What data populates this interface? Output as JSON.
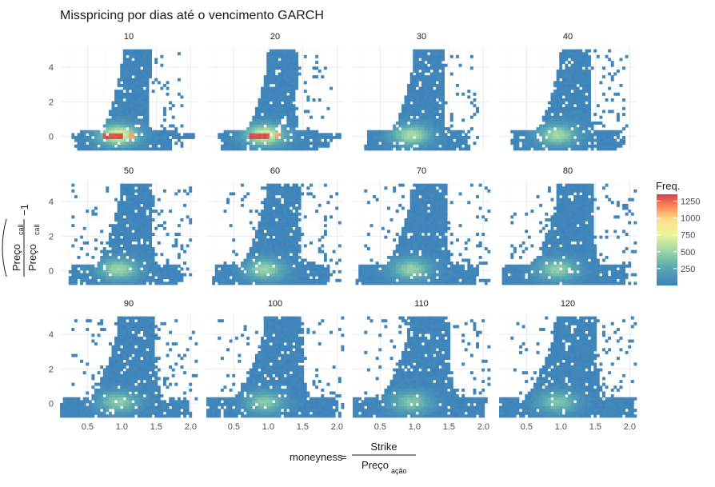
{
  "chart_data": {
    "type": "heatmap",
    "title": "Misspricing por dias até o vencimento GARCH",
    "facet_variable": "dias até o vencimento",
    "facets": [
      "10",
      "20",
      "30",
      "40",
      "50",
      "60",
      "70",
      "80",
      "90",
      "100",
      "110",
      "120"
    ],
    "xlabel": {
      "prefix": "moneyness",
      "equals": "=",
      "numerator": "Strike",
      "denominator": "Preço",
      "denominator_subscript": "ação"
    },
    "ylabel": {
      "numerator": "Preço",
      "numerator_subscript": "call",
      "denominator": "Preço",
      "denominator_subscript": "call",
      "suffix": "−1"
    },
    "x_ticks": [
      "0.5",
      "1.0",
      "1.5",
      "2.0"
    ],
    "y_ticks": [
      "0",
      "2",
      "4"
    ],
    "xlim": [
      0.1,
      2.1
    ],
    "ylim": [
      -0.8,
      5.2
    ],
    "legend": {
      "title": "Freq.",
      "labels": [
        "1250",
        "1000",
        "750",
        "500",
        "250"
      ],
      "values": [
        1250,
        1000,
        750,
        500,
        250
      ],
      "range": [
        0,
        1350
      ],
      "placement": "right"
    },
    "colors": {
      "low": "#3d82bb",
      "mid_low": "#7ecba4",
      "mid": "#e9f59c",
      "mid_high": "#fdbf6f",
      "high": "#d53e4f",
      "panel_bg": "#ffffff",
      "grid_major": "#ebebeb",
      "grid_minor": "#f5f5f5"
    },
    "grid": true,
    "bin_count_x": 48,
    "bin_count_y": 36
  }
}
